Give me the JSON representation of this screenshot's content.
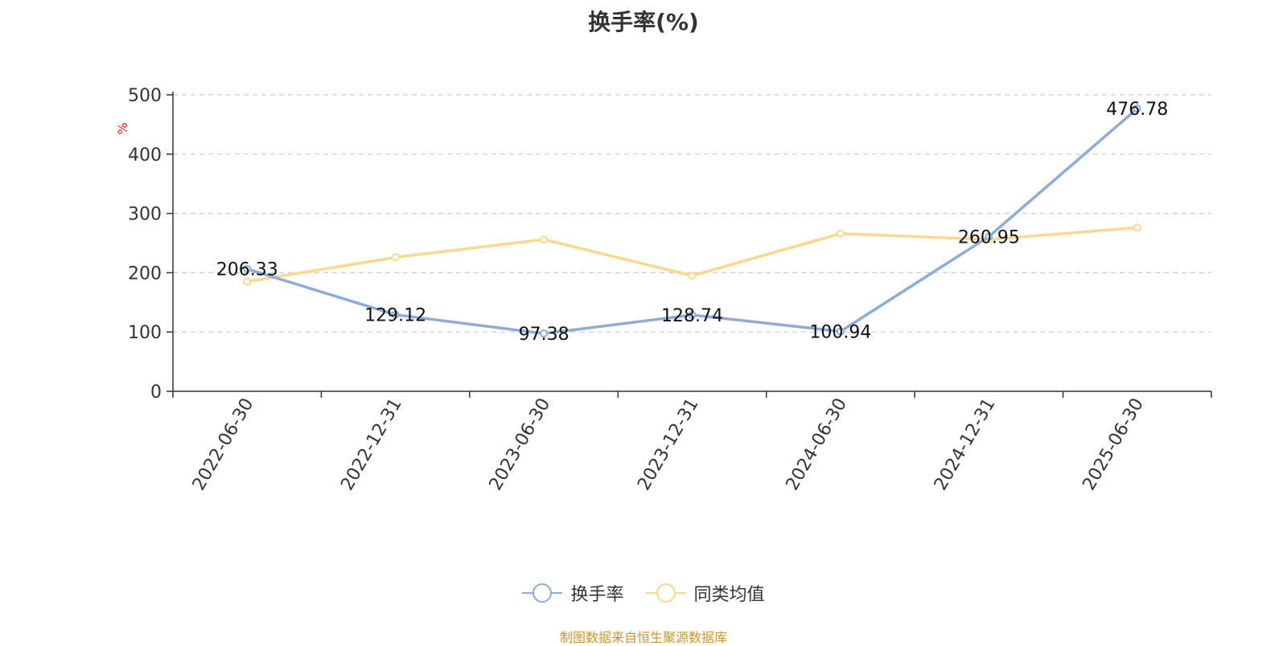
{
  "chart_data": {
    "type": "line",
    "title": "换手率(%)",
    "ylabel": "%",
    "ylim": [
      0,
      500
    ],
    "yticks": [
      0,
      100,
      200,
      300,
      400,
      500
    ],
    "categories": [
      "2022-06-30",
      "2022-12-31",
      "2023-06-30",
      "2023-12-31",
      "2024-06-30",
      "2024-12-31",
      "2025-06-30"
    ],
    "series": [
      {
        "name": "换手率",
        "color": "#8eacd8",
        "values": [
          206.33,
          129.12,
          97.38,
          128.74,
          100.94,
          260.95,
          476.78
        ],
        "data_labels": [
          "206.33",
          "129.12",
          "97.38",
          "128.74",
          "100.94",
          "260.95",
          "476.78"
        ]
      },
      {
        "name": "同类均值",
        "color": "#fad98f",
        "values": [
          185,
          226,
          256,
          195,
          266,
          256,
          276
        ]
      }
    ],
    "grid": true,
    "legend_position": "bottom"
  },
  "source_note": "制图数据来自恒生聚源数据库"
}
